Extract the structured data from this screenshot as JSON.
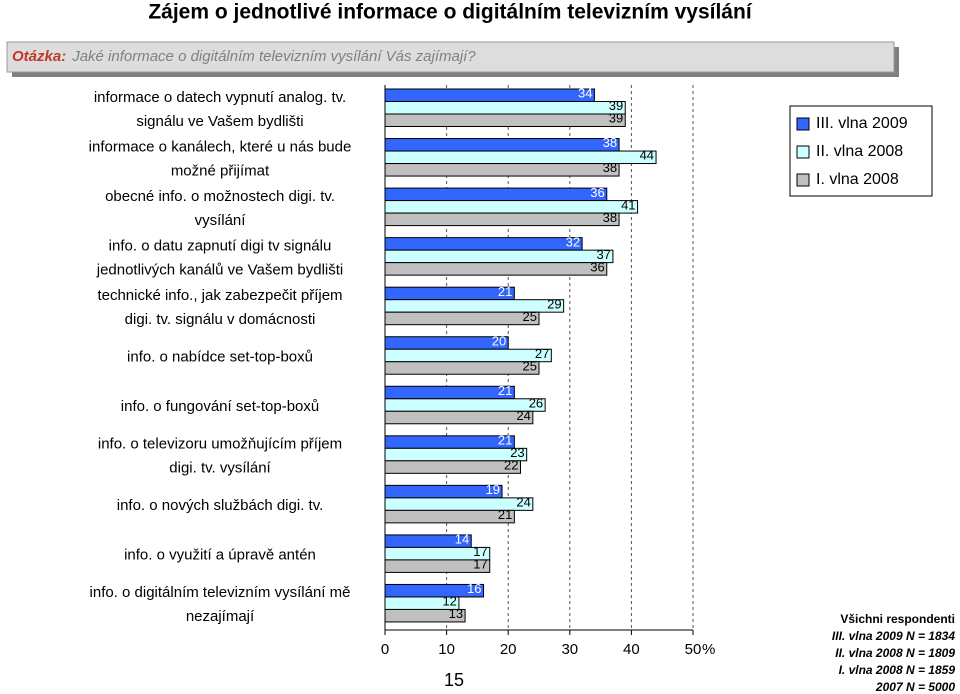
{
  "chart_data": {
    "type": "hbar",
    "title": "Zájem o jednotlivé informace o digitálním televizním vysílání",
    "question_label": "Otázka:",
    "question": "Jaké informace o digitálním televizním vysílání Vás zajímají?",
    "categories": [
      "informace o datech vypnutí analog. tv.\nsignálu ve Vašem bydlišti",
      "informace o kanálech, které u nás bude\nmožné přijímat",
      "obecné info. o možnostech digi. tv.\nvysílání",
      "info. o datu zapnutí digi tv signálu\njednotlivých kanálů ve Vašem bydlišti",
      "technické info., jak zabezpečit příjem\ndigi. tv. signálu v domácnosti",
      "info. o nabídce set-top-boxů",
      "info. o fungování set-top-boxů",
      "info. o televizoru umožňujícím příjem\ndigi. tv. vysílání",
      "info. o nových službách digi. tv.",
      "info. o využití a úpravě antén",
      "info. o digitálním televizním vysílání mě\nnezajímají"
    ],
    "series": [
      {
        "name": "III. vlna 2009",
        "color": "#3366ff",
        "values": [
          34,
          38,
          36,
          32,
          21,
          20,
          21,
          21,
          19,
          14,
          16
        ]
      },
      {
        "name": "II. vlna 2008",
        "color": "#ccffff",
        "values": [
          39,
          44,
          41,
          37,
          29,
          27,
          26,
          23,
          24,
          17,
          12
        ]
      },
      {
        "name": "I. vlna 2008",
        "color": "#c0c0c0",
        "values": [
          39,
          38,
          38,
          36,
          25,
          25,
          24,
          22,
          21,
          17,
          13
        ]
      }
    ],
    "xlim": [
      0,
      50
    ],
    "xticks": [
      0,
      10,
      20,
      30,
      40,
      50
    ],
    "x_unit": "%",
    "grid": true,
    "legend": "top-right",
    "page_number": "15",
    "notes": [
      "Všichni respondenti",
      "III. vlna 2009 N = 1834",
      "II. vlna 2008 N = 1809",
      "I. vlna 2008 N = 1859",
      "2007 N = 5000"
    ]
  }
}
